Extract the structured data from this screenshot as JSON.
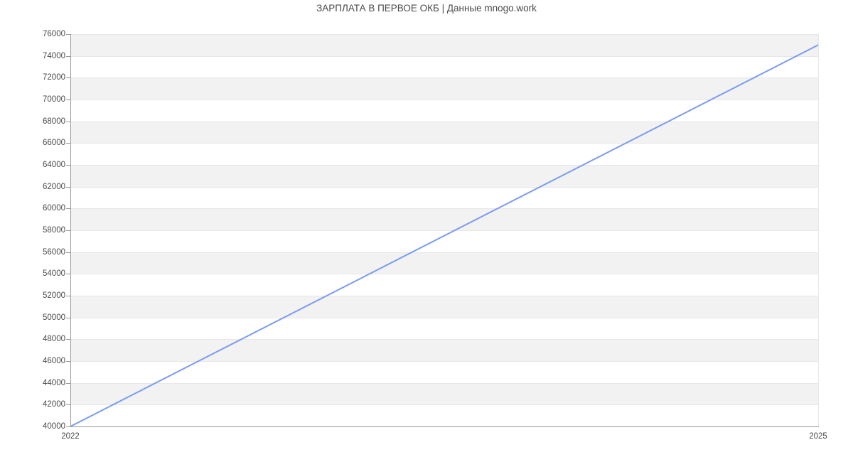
{
  "chart_data": {
    "type": "line",
    "title": "ЗАРПЛАТА В ПЕРВОЕ ОКБ | Данные mnogo.work",
    "series": [
      {
        "points": [
          {
            "x": 2022,
            "y": 40000
          },
          {
            "x": 2025,
            "y": 75000
          }
        ]
      }
    ],
    "xlabel": "",
    "ylabel": "",
    "xlim": [
      2022,
      2025
    ],
    "ylim": [
      40000,
      76000
    ],
    "xticks": [
      2022,
      2025
    ],
    "yticks": [
      40000,
      42000,
      44000,
      46000,
      48000,
      50000,
      52000,
      54000,
      56000,
      58000,
      60000,
      62000,
      64000,
      66000,
      68000,
      70000,
      72000,
      74000,
      76000
    ],
    "legend": "none",
    "grid": "horizontal-bands",
    "colors": {
      "line": "#7b9cf0",
      "band": "#f2f2f2",
      "gridline": "#e7e7e7",
      "axis": "#999999",
      "text": "#4a4a4a",
      "background": "#ffffff"
    }
  }
}
